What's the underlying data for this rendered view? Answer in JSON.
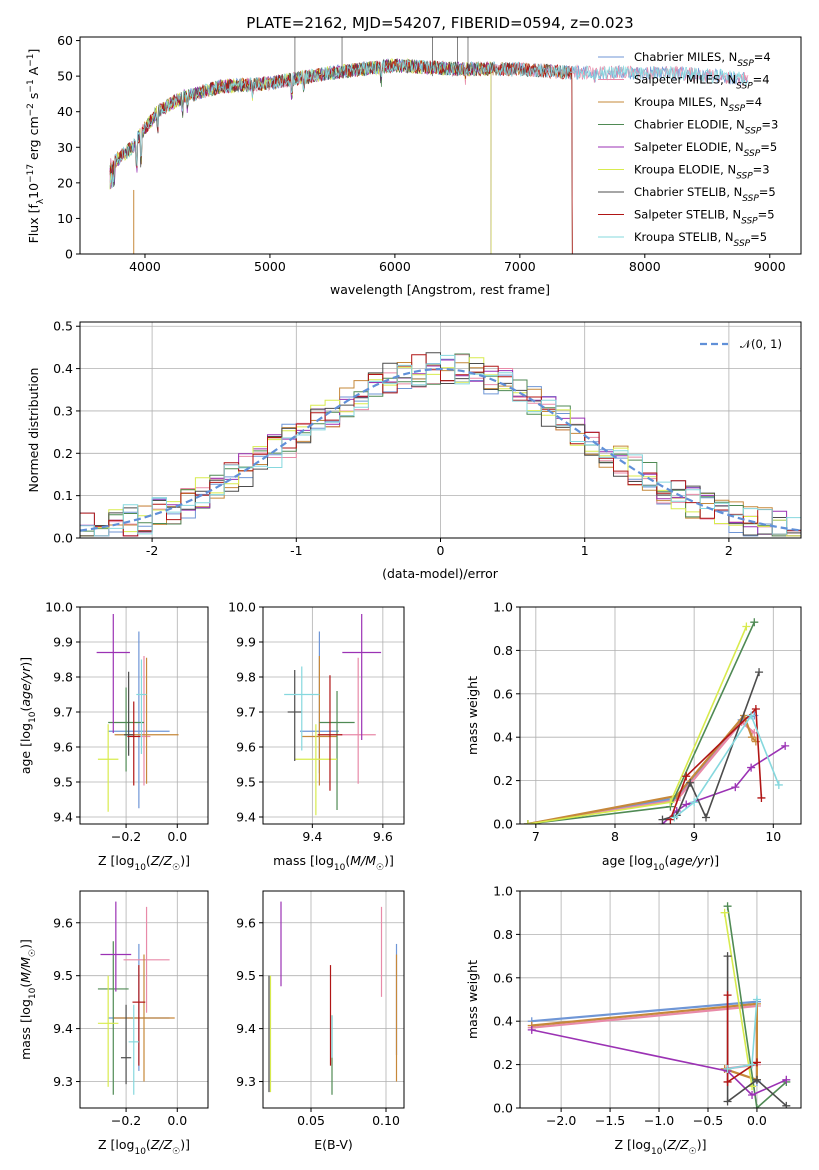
{
  "colors": {
    "chabrier_miles": "#6f96d6",
    "salpeter_miles": "#e88aa8",
    "kroupa_miles": "#c6883a",
    "chabrier_elodie": "#4f8a54",
    "salpeter_elodie": "#9b32b4",
    "kroupa_elodie": "#d8eb4e",
    "chabrier_stelib": "#4c4c4c",
    "salpeter_stelib": "#b01515",
    "kroupa_stelib": "#86d8de",
    "gauss": "#6090d8",
    "grid": "#b0b0b0"
  },
  "chart_data": [
    {
      "id": "spectrum",
      "type": "line",
      "title": "PLATE=2162, MJD=54207, FIBERID=0594, z=0.023",
      "xlabel": "wavelength [Angstrom, rest frame]",
      "ylabel": "Flux [f_λ 10⁻¹⁷ erg cm⁻² s⁻¹ A⁻¹]",
      "xlim": [
        3480,
        9250
      ],
      "ylim": [
        0,
        61
      ],
      "xticks": [
        4000,
        5000,
        6000,
        7000,
        8000,
        9000
      ],
      "yticks": [
        0,
        10,
        20,
        30,
        40,
        50,
        60
      ],
      "grid": false,
      "legend_position": "top-right",
      "legend": [
        "Chabrier MILES, N_SSP=4",
        "Salpeter MILES, N_SSP=4",
        "Kroupa MILES, N_SSP=4",
        "Chabrier ELODIE, N_SSP=3",
        "Salpeter ELODIE, N_SSP=5",
        "Kroupa ELODIE, N_SSP=3",
        "Chabrier STELIB, N_SSP=5",
        "Salpeter STELIB, N_SSP=5",
        "Kroupa STELIB, N_SSP=5"
      ],
      "continuum": {
        "x": [
          3720,
          3900,
          3950,
          4100,
          4300,
          4600,
          5000,
          5500,
          6000,
          6500,
          7000,
          7400,
          7800,
          8200,
          8600,
          8830
        ],
        "y": [
          25,
          30,
          33,
          40,
          44,
          47,
          48,
          51,
          53,
          52,
          52,
          51,
          51,
          51,
          50,
          49
        ]
      },
      "series_extent": [
        {
          "xmin": 3720,
          "xmax": 8830
        },
        {
          "xmin": 3720,
          "xmax": 8830
        },
        {
          "xmin": 3720,
          "xmax": 7420
        },
        {
          "xmin": 3720,
          "xmax": 6770
        },
        {
          "xmin": 3720,
          "xmax": 6770
        },
        {
          "xmin": 3720,
          "xmax": 6770
        },
        {
          "xmin": 3720,
          "xmax": 7420
        },
        {
          "xmin": 3720,
          "xmax": 7420
        },
        {
          "xmin": 3720,
          "xmax": 8830
        }
      ]
    },
    {
      "id": "residuals",
      "type": "line",
      "xlabel": "(data-model)/error",
      "ylabel": "Normed distribution",
      "xlim": [
        -2.5,
        2.5
      ],
      "ylim": [
        0,
        0.51
      ],
      "xticks": [
        -2,
        -1,
        0,
        1,
        2
      ],
      "yticks": [
        0.0,
        0.1,
        0.2,
        0.3,
        0.4,
        0.5
      ],
      "grid": true,
      "legend_position": "top-right",
      "gauss_label": "𝒩(0, 1)",
      "bin_width": 0.1
    },
    {
      "id": "age_vs_Z",
      "type": "scatter",
      "xlabel": "Z [log₁₀(Z/Z☉)]",
      "ylabel": "age  [log₁₀(age/yr)]",
      "xlim": [
        -0.38,
        0.12
      ],
      "ylim": [
        9.38,
        10.0
      ],
      "xticks": [
        -0.2,
        0.0
      ],
      "yticks": [
        9.4,
        9.5,
        9.6,
        9.7,
        9.8,
        9.9,
        10.0
      ],
      "grid": true,
      "points": [
        {
          "x": -0.15,
          "y": 9.645,
          "xerr": 0.24,
          "yerr": [
            0.22,
            0.285
          ]
        },
        {
          "x": -0.13,
          "y": 9.63,
          "xerr": 0.05,
          "yerr": [
            0.14,
            0.23
          ]
        },
        {
          "x": -0.12,
          "y": 9.635,
          "xerr": 0.25,
          "yerr": [
            0.14,
            0.22
          ]
        },
        {
          "x": -0.2,
          "y": 9.67,
          "xerr": 0.14,
          "yerr": [
            0.14,
            0.1
          ]
        },
        {
          "x": -0.25,
          "y": 9.87,
          "xerr": 0.13,
          "yerr": [
            0.23,
            0.11
          ]
        },
        {
          "x": -0.27,
          "y": 9.565,
          "xerr": 0.08,
          "yerr": [
            0.15,
            0.1
          ]
        },
        {
          "x": -0.19,
          "y": 9.635,
          "xerr": 0.035,
          "yerr": [
            0.06,
            0.18
          ]
        },
        {
          "x": -0.17,
          "y": 9.63,
          "xerr": 0.05,
          "yerr": [
            0.14,
            0.1
          ]
        },
        {
          "x": -0.14,
          "y": 9.75,
          "xerr": 0.04,
          "yerr": [
            0.17,
            0.1
          ]
        }
      ]
    },
    {
      "id": "age_vs_mass",
      "type": "scatter",
      "xlabel": "mass [log₁₀(M/M☉)]",
      "ylabel": "",
      "xlim": [
        9.26,
        9.66
      ],
      "ylim": [
        9.38,
        10.0
      ],
      "xticks": [
        9.4,
        9.6
      ],
      "yticks": [
        9.4,
        9.5,
        9.6,
        9.7,
        9.8,
        9.9,
        10.0
      ],
      "grid": true,
      "points": [
        {
          "x": 9.42,
          "y": 9.645,
          "xerr": 0.11,
          "yerr": [
            0.12,
            0.285
          ]
        },
        {
          "x": 9.53,
          "y": 9.635,
          "xerr": 0.1,
          "yerr": [
            0.14,
            0.22
          ]
        },
        {
          "x": 9.42,
          "y": 9.63,
          "xerr": 0.1,
          "yerr": [
            0.14,
            0.23
          ]
        },
        {
          "x": 9.47,
          "y": 9.67,
          "xerr": 0.1,
          "yerr": [
            0.25,
            0.09
          ]
        },
        {
          "x": 9.54,
          "y": 9.87,
          "xerr": 0.11,
          "yerr": [
            0.25,
            0.11
          ]
        },
        {
          "x": 9.41,
          "y": 9.565,
          "xerr": 0.12,
          "yerr": [
            0.16,
            0.1
          ]
        },
        {
          "x": 9.35,
          "y": 9.7,
          "xerr": 0.04,
          "yerr": [
            0.14,
            0.12
          ]
        },
        {
          "x": 9.45,
          "y": 9.635,
          "xerr": 0.07,
          "yerr": [
            0.16,
            0.17
          ]
        },
        {
          "x": 9.37,
          "y": 9.75,
          "xerr": 0.1,
          "yerr": [
            0.16,
            0.08
          ]
        }
      ]
    },
    {
      "id": "weight_vs_age",
      "type": "line",
      "xlabel": "age  [log₁₀(age/yr)]",
      "ylabel": "mass weight",
      "xlim": [
        6.8,
        10.35
      ],
      "ylim": [
        0,
        1.0
      ],
      "xticks": [
        7,
        8,
        9,
        10
      ],
      "yticks": [
        0.0,
        0.2,
        0.4,
        0.6,
        0.8,
        1.0
      ],
      "grid": true,
      "series": [
        {
          "x": [
            6.9,
            8.78,
            9.6,
            9.76
          ],
          "y": [
            0.0,
            0.12,
            0.48,
            0.5
          ]
        },
        {
          "x": [
            6.9,
            8.78,
            9.6,
            9.76
          ],
          "y": [
            0.0,
            0.11,
            0.47,
            0.42
          ]
        },
        {
          "x": [
            6.9,
            8.78,
            9.63,
            9.73,
            9.78
          ],
          "y": [
            0.0,
            0.13,
            0.5,
            0.4,
            0.38
          ]
        },
        {
          "x": [
            6.9,
            8.7,
            9.76
          ],
          "y": [
            0.0,
            0.08,
            0.93
          ]
        },
        {
          "x": [
            8.6,
            8.78,
            8.9,
            9.52,
            9.72,
            10.15
          ],
          "y": [
            0.0,
            0.06,
            0.09,
            0.17,
            0.26,
            0.36
          ]
        },
        {
          "x": [
            6.9,
            8.7,
            9.66
          ],
          "y": [
            0.0,
            0.1,
            0.91
          ]
        },
        {
          "x": [
            8.6,
            8.78,
            8.95,
            9.15,
            9.82
          ],
          "y": [
            0.02,
            0.04,
            0.19,
            0.03,
            0.7
          ]
        },
        {
          "x": [
            8.7,
            8.9,
            9.78,
            9.85
          ],
          "y": [
            0.02,
            0.22,
            0.53,
            0.12
          ]
        },
        {
          "x": [
            8.75,
            9.0,
            9.72,
            10.07
          ],
          "y": [
            0.03,
            0.1,
            0.5,
            0.18
          ]
        }
      ]
    },
    {
      "id": "mass_vs_Z",
      "type": "scatter",
      "xlabel": "Z [log₁₀(Z/Z☉)]",
      "ylabel": "mass [log₁₀(M/M☉)]",
      "xlim": [
        -0.38,
        0.12
      ],
      "ylim": [
        9.25,
        9.66
      ],
      "xticks": [
        -0.2,
        0.0
      ],
      "yticks": [
        9.3,
        9.4,
        9.5,
        9.6
      ],
      "grid": true,
      "points": [
        {
          "x": -0.15,
          "y": 9.42,
          "xerr": 0.24,
          "yerr": [
            0.1,
            0.14
          ]
        },
        {
          "x": -0.12,
          "y": 9.53,
          "xerr": 0.18,
          "yerr": [
            0.1,
            0.1
          ]
        },
        {
          "x": -0.13,
          "y": 9.42,
          "xerr": 0.24,
          "yerr": [
            0.12,
            0.12
          ]
        },
        {
          "x": -0.25,
          "y": 9.475,
          "xerr": 0.12,
          "yerr": [
            0.2,
            0.09
          ]
        },
        {
          "x": -0.24,
          "y": 9.54,
          "xerr": 0.12,
          "yerr": [
            0.07,
            0.1
          ]
        },
        {
          "x": -0.27,
          "y": 9.41,
          "xerr": 0.08,
          "yerr": [
            0.12,
            0.09
          ]
        },
        {
          "x": -0.2,
          "y": 9.345,
          "xerr": 0.04,
          "yerr": [
            0.05,
            0.1
          ]
        },
        {
          "x": -0.15,
          "y": 9.45,
          "xerr": 0.05,
          "yerr": [
            0.12,
            0.07
          ]
        },
        {
          "x": -0.17,
          "y": 9.375,
          "xerr": 0.04,
          "yerr": [
            0.1,
            0.07
          ]
        }
      ]
    },
    {
      "id": "mass_vs_ebv",
      "type": "scatter",
      "xlabel": "E(B-V)",
      "ylabel": "",
      "xlim": [
        0.018,
        0.112
      ],
      "ylim": [
        9.25,
        9.66
      ],
      "xticks": [
        0.05,
        0.1
      ],
      "yticks": [
        9.3,
        9.4,
        9.5,
        9.6
      ],
      "grid": true,
      "points": [
        {
          "x": 0.107,
          "y": 9.45,
          "yerr": [
            0.1,
            0.11
          ]
        },
        {
          "x": 0.097,
          "y": 9.55,
          "yerr": [
            0.09,
            0.08
          ]
        },
        {
          "x": 0.107,
          "y": 9.42,
          "yerr": [
            0.12,
            0.12
          ]
        },
        {
          "x": 0.064,
          "y": 9.375,
          "yerr": [
            0.1,
            0.05
          ]
        },
        {
          "x": 0.03,
          "y": 9.56,
          "yerr": [
            0.08,
            0.08
          ]
        },
        {
          "x": 0.023,
          "y": 9.4,
          "yerr": [
            0.12,
            0.1
          ]
        },
        {
          "x": 0.022,
          "y": 9.4,
          "yerr": [
            0.12,
            0.1
          ]
        },
        {
          "x": 0.063,
          "y": 9.45,
          "yerr": [
            0.12,
            0.07
          ]
        },
        {
          "x": 0.064,
          "y": 9.375,
          "yerr": [
            0.03,
            0.05
          ]
        }
      ]
    },
    {
      "id": "weight_vs_Z",
      "type": "line",
      "xlabel": "Z [log₁₀(Z/Z☉)]",
      "ylabel": "mass weight",
      "xlim": [
        -2.42,
        0.45
      ],
      "ylim": [
        0,
        1.0
      ],
      "xticks": [
        -2.0,
        -1.5,
        -1.0,
        -0.5,
        0.0
      ],
      "yticks": [
        0.0,
        0.2,
        0.4,
        0.6,
        0.8,
        1.0
      ],
      "grid": true,
      "series": [
        {
          "x": [
            -2.3,
            0.0,
            0.0
          ],
          "y": [
            0.4,
            0.49,
            0.12
          ]
        },
        {
          "x": [
            -2.3,
            0.0,
            0.0,
            -0.33
          ],
          "y": [
            0.37,
            0.47,
            0.2,
            0.18
          ]
        },
        {
          "x": [
            -2.3,
            0.0,
            0.0,
            -0.33
          ],
          "y": [
            0.38,
            0.48,
            0.13,
            0.18
          ]
        },
        {
          "x": [
            -0.3,
            0.0,
            0.3
          ],
          "y": [
            0.93,
            0.0,
            0.12
          ]
        },
        {
          "x": [
            -2.3,
            -0.3,
            -0.05,
            0.3
          ],
          "y": [
            0.36,
            0.17,
            0.06,
            0.13
          ]
        },
        {
          "x": [
            -0.33,
            -0.05
          ],
          "y": [
            0.9,
            0.1
          ]
        },
        {
          "x": [
            -0.3,
            -0.3,
            0.0,
            0.3
          ],
          "y": [
            0.7,
            0.03,
            0.13,
            0.01
          ]
        },
        {
          "x": [
            -0.3,
            -0.3,
            0.0
          ],
          "y": [
            0.52,
            0.12,
            0.21
          ]
        },
        {
          "x": [
            -0.3,
            -0.05,
            0.0
          ],
          "y": [
            0.18,
            0.2,
            0.5
          ]
        }
      ]
    }
  ]
}
